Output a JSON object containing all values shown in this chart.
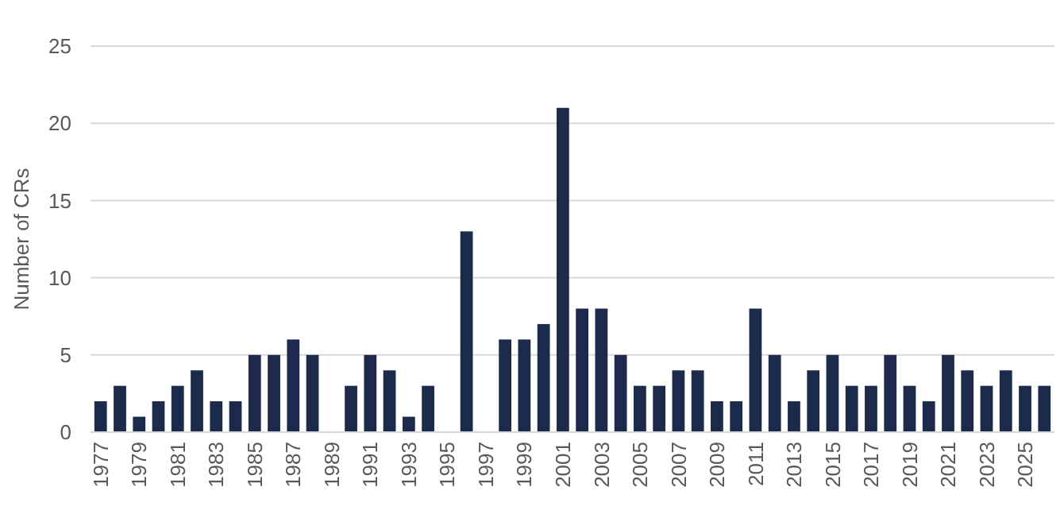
{
  "chart_data": {
    "type": "bar",
    "ylabel": "Number of CRs",
    "categories": [
      "1977",
      null,
      "1979",
      null,
      "1981",
      null,
      "1983",
      null,
      "1985",
      null,
      "1987",
      null,
      "1989",
      null,
      "1991",
      null,
      "1993",
      null,
      "1995",
      null,
      "1997",
      null,
      "1999",
      null,
      "2001",
      null,
      "2003",
      null,
      "2005",
      null,
      "2007",
      null,
      "2009",
      null,
      "2011",
      null,
      "2013",
      null,
      "2015",
      null,
      "2017",
      null,
      "2019",
      null,
      "2021",
      null,
      "2023",
      null,
      "2025",
      null
    ],
    "values": [
      2,
      3,
      1,
      2,
      3,
      4,
      2,
      2,
      5,
      5,
      6,
      5,
      0,
      3,
      5,
      4,
      1,
      3,
      0,
      13,
      0,
      6,
      6,
      7,
      21,
      8,
      8,
      5,
      3,
      3,
      4,
      4,
      2,
      2,
      8,
      5,
      2,
      4,
      5,
      3,
      3,
      5,
      3,
      2,
      5,
      4,
      3,
      4,
      3,
      3
    ],
    "color": "#1c2b4b",
    "ylim": [
      0,
      25
    ],
    "yticks": [
      0,
      5,
      10,
      15,
      20,
      25
    ],
    "grid": "y"
  }
}
